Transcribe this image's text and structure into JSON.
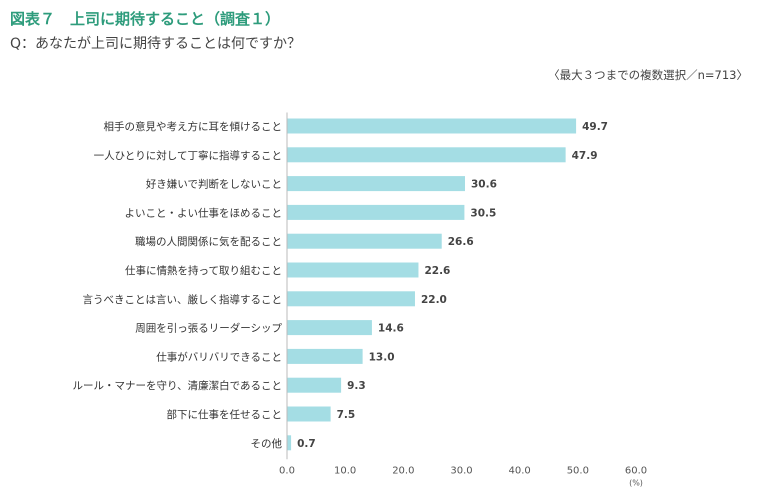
{
  "header": {
    "title": "図表７　上司に期待すること（調査１）",
    "question": "Q：あなたが上司に期待することは何ですか？",
    "note": "〈最大３つまでの複数選択／n=713〉"
  },
  "chart_data": {
    "type": "bar",
    "orientation": "horizontal",
    "categories": [
      "相手の意見や考え方に耳を傾けること",
      "一人ひとりに対して丁寧に指導すること",
      "好き嫌いで判断をしないこと",
      "よいこと・よい仕事をほめること",
      "職場の人間関係に気を配ること",
      "仕事に情熱を持って取り組むこと",
      "言うべきことは言い、厳しく指導すること",
      "周囲を引っ張るリーダーシップ",
      "仕事がバリバリできること",
      "ルール・マナーを守り、清廉潔白であること",
      "部下に仕事を任せること",
      "その他"
    ],
    "values": [
      49.7,
      47.9,
      30.6,
      30.5,
      26.6,
      22.6,
      22.0,
      14.6,
      13.0,
      9.3,
      7.5,
      0.7
    ],
    "value_labels": [
      "49.7",
      "47.9",
      "30.6",
      "30.5",
      "26.6",
      "22.6",
      "22.0",
      "14.6",
      "13.0",
      "9.3",
      "7.5",
      "0.7"
    ],
    "xlim": [
      0,
      60
    ],
    "xticks": [
      "0.0",
      "10.0",
      "20.0",
      "30.0",
      "40.0",
      "50.0",
      "60.0"
    ],
    "xunit": "(%)",
    "grid": false,
    "bar_color": "#a4dde4"
  }
}
